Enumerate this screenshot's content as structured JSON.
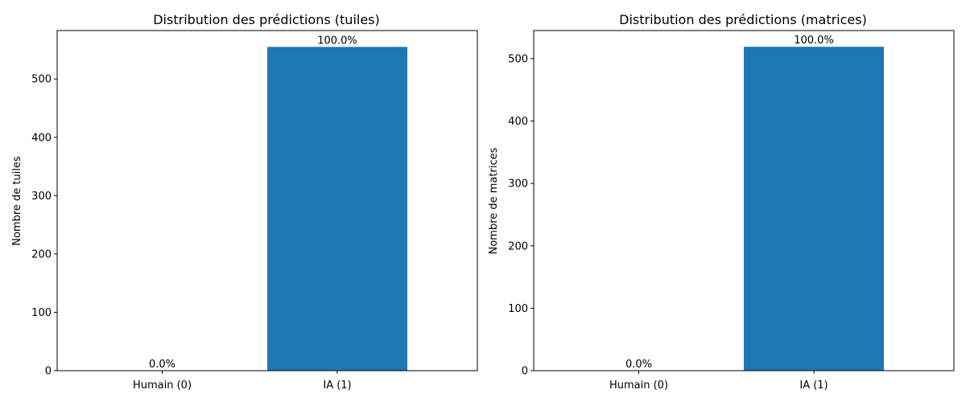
{
  "colors": {
    "bar": "#1f77b4",
    "axis": "#000000"
  },
  "chart_data": [
    {
      "type": "bar",
      "title": "Distribution des prédictions (tuiles)",
      "xlabel": "",
      "ylabel": "Nombre de tuiles",
      "categories": [
        "Humain (0)",
        "IA (1)"
      ],
      "values": [
        0,
        555
      ],
      "data_labels": [
        "0.0%",
        "100.0%"
      ],
      "ylim": [
        0,
        583
      ],
      "yticks": [
        0,
        100,
        200,
        300,
        400,
        500
      ]
    },
    {
      "type": "bar",
      "title": "Distribution des prédictions (matrices)",
      "xlabel": "",
      "ylabel": "Nombre de matrices",
      "categories": [
        "Humain (0)",
        "IA (1)"
      ],
      "values": [
        0,
        519
      ],
      "data_labels": [
        "0.0%",
        "100.0%"
      ],
      "ylim": [
        0,
        545
      ],
      "yticks": [
        0,
        100,
        200,
        300,
        400,
        500
      ]
    }
  ]
}
